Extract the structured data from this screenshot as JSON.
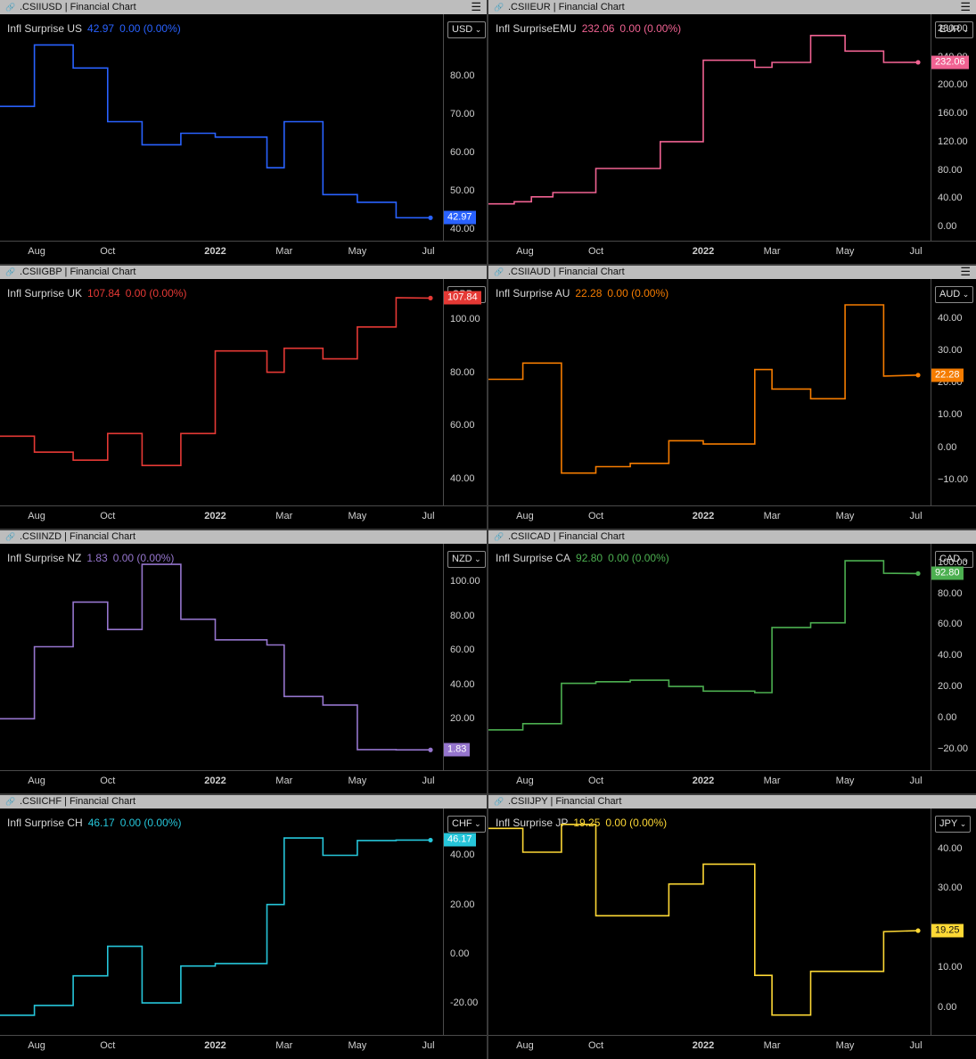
{
  "panels": [
    {
      "header": ".CSIIUSD | Financial Chart",
      "series_name": "Infl Surprise US",
      "value": "42.97",
      "change": "0.00 (0.00%)",
      "currency": "USD",
      "color": "#2962ff",
      "menu": true,
      "price_label": "42.97",
      "x_ticks": [
        "Aug",
        "Oct",
        "2022",
        "Mar",
        "May",
        "Jul"
      ],
      "y_ticks": [
        "80.00",
        "70.00",
        "60.00",
        "50.00",
        "40.00"
      ]
    },
    {
      "header": ".CSIIEUR | Financial Chart",
      "series_name": "Infl SurpriseEMU",
      "value": "232.06",
      "change": "0.00 (0.00%)",
      "currency": "EUR",
      "color": "#f06292",
      "menu": true,
      "price_label": "232.06",
      "x_ticks": [
        "Aug",
        "Oct",
        "2022",
        "Mar",
        "May",
        "Jul"
      ],
      "y_ticks": [
        "280.00",
        "240.00",
        "200.00",
        "160.00",
        "120.00",
        "80.00",
        "40.00",
        "0.00"
      ]
    },
    {
      "header": ".CSIIGBP | Financial Chart",
      "series_name": "Infl Surprise UK",
      "value": "107.84",
      "change": "0.00 (0.00%)",
      "currency": "GBP",
      "color": "#e53935",
      "menu": false,
      "price_label": "107.84",
      "x_ticks": [
        "Aug",
        "Oct",
        "2022",
        "Mar",
        "May",
        "Jul"
      ],
      "y_ticks": [
        "100.00",
        "80.00",
        "60.00",
        "40.00"
      ]
    },
    {
      "header": ".CSIIAUD | Financial Chart",
      "series_name": "Infl Surprise AU",
      "value": "22.28",
      "change": "0.00 (0.00%)",
      "currency": "AUD",
      "color": "#f57c00",
      "menu": true,
      "price_label": "22.28",
      "x_ticks": [
        "Aug",
        "Oct",
        "2022",
        "Mar",
        "May",
        "Jul"
      ],
      "y_ticks": [
        "40.00",
        "30.00",
        "20.00",
        "10.00",
        "0.00",
        "−10.00"
      ]
    },
    {
      "header": ".CSIINZD | Financial Chart",
      "series_name": "Infl Surprise NZ",
      "value": "1.83",
      "change": "0.00 (0.00%)",
      "currency": "NZD",
      "color": "#9575cd",
      "menu": false,
      "price_label": "1.83",
      "x_ticks": [
        "Aug",
        "Oct",
        "2022",
        "Mar",
        "May",
        "Jul"
      ],
      "y_ticks": [
        "100.00",
        "80.00",
        "60.00",
        "40.00",
        "20.00"
      ]
    },
    {
      "header": ".CSIICAD | Financial Chart",
      "series_name": "Infl Surprise CA",
      "value": "92.80",
      "change": "0.00 (0.00%)",
      "currency": "CAD",
      "color": "#4caf50",
      "menu": false,
      "price_label": "92.80",
      "x_ticks": [
        "Aug",
        "Oct",
        "2022",
        "Mar",
        "May",
        "Jul"
      ],
      "y_ticks": [
        "100.00",
        "80.00",
        "60.00",
        "40.00",
        "20.00",
        "0.00",
        "−20.00"
      ]
    },
    {
      "header": ".CSIICHF | Financial Chart",
      "series_name": "Infl Surprise CH",
      "value": "46.17",
      "change": "0.00 (0.00%)",
      "currency": "CHF",
      "color": "#26c6da",
      "menu": false,
      "price_label": "46.17",
      "x_ticks": [
        "Aug",
        "Oct",
        "2022",
        "Mar",
        "May",
        "Jul"
      ],
      "y_ticks": [
        "40.00",
        "20.00",
        "0.00",
        "-20.00"
      ]
    },
    {
      "header": ".CSIIJPY | Financial Chart",
      "series_name": "Infl Surprise JP",
      "value": "19.25",
      "change": "0.00 (0.00%)",
      "currency": "JPY",
      "color": "#fdd835",
      "menu": false,
      "price_label": "19.25",
      "x_ticks": [
        "Aug",
        "Oct",
        "2022",
        "Mar",
        "May",
        "Jul"
      ],
      "y_ticks": [
        "40.00",
        "30.00",
        "20.00",
        "10.00",
        "0.00"
      ]
    }
  ],
  "chart_data": [
    {
      "type": "line",
      "title": "Infl Surprise US",
      "ylim": [
        37,
        96
      ],
      "steps": [
        [
          0,
          72
        ],
        [
          0.08,
          72
        ],
        [
          0.08,
          88
        ],
        [
          0.17,
          88
        ],
        [
          0.17,
          82
        ],
        [
          0.25,
          82
        ],
        [
          0.25,
          68
        ],
        [
          0.33,
          68
        ],
        [
          0.33,
          62
        ],
        [
          0.42,
          62
        ],
        [
          0.42,
          65
        ],
        [
          0.5,
          65
        ],
        [
          0.5,
          64
        ],
        [
          0.62,
          64
        ],
        [
          0.62,
          56
        ],
        [
          0.66,
          56
        ],
        [
          0.66,
          68
        ],
        [
          0.75,
          68
        ],
        [
          0.75,
          49
        ],
        [
          0.83,
          49
        ],
        [
          0.83,
          47
        ],
        [
          0.92,
          47
        ],
        [
          0.92,
          43
        ],
        [
          1,
          42.97
        ]
      ]
    },
    {
      "type": "line",
      "title": "Infl SurpriseEMU",
      "ylim": [
        -20,
        300
      ],
      "steps": [
        [
          0,
          32
        ],
        [
          0.06,
          32
        ],
        [
          0.06,
          35
        ],
        [
          0.1,
          35
        ],
        [
          0.1,
          42
        ],
        [
          0.15,
          42
        ],
        [
          0.15,
          48
        ],
        [
          0.25,
          48
        ],
        [
          0.25,
          82
        ],
        [
          0.4,
          82
        ],
        [
          0.4,
          120
        ],
        [
          0.5,
          120
        ],
        [
          0.5,
          235
        ],
        [
          0.62,
          235
        ],
        [
          0.62,
          225
        ],
        [
          0.66,
          225
        ],
        [
          0.66,
          232
        ],
        [
          0.75,
          232
        ],
        [
          0.75,
          270
        ],
        [
          0.83,
          270
        ],
        [
          0.83,
          248
        ],
        [
          0.92,
          248
        ],
        [
          0.92,
          232
        ],
        [
          1,
          232.06
        ]
      ]
    },
    {
      "type": "line",
      "title": "Infl Surprise UK",
      "ylim": [
        30,
        115
      ],
      "steps": [
        [
          0,
          56
        ],
        [
          0.08,
          56
        ],
        [
          0.08,
          50
        ],
        [
          0.17,
          50
        ],
        [
          0.17,
          47
        ],
        [
          0.25,
          47
        ],
        [
          0.25,
          57
        ],
        [
          0.33,
          57
        ],
        [
          0.33,
          45
        ],
        [
          0.42,
          45
        ],
        [
          0.42,
          57
        ],
        [
          0.5,
          57
        ],
        [
          0.5,
          88
        ],
        [
          0.62,
          88
        ],
        [
          0.62,
          80
        ],
        [
          0.66,
          80
        ],
        [
          0.66,
          89
        ],
        [
          0.75,
          89
        ],
        [
          0.75,
          85
        ],
        [
          0.83,
          85
        ],
        [
          0.83,
          97
        ],
        [
          0.92,
          97
        ],
        [
          0.92,
          108
        ],
        [
          1,
          107.84
        ]
      ]
    },
    {
      "type": "line",
      "title": "Infl Surprise AU",
      "ylim": [
        -18,
        52
      ],
      "steps": [
        [
          0,
          21
        ],
        [
          0.08,
          21
        ],
        [
          0.08,
          26
        ],
        [
          0.17,
          26
        ],
        [
          0.17,
          -8
        ],
        [
          0.25,
          -8
        ],
        [
          0.25,
          -6
        ],
        [
          0.33,
          -6
        ],
        [
          0.33,
          -5
        ],
        [
          0.42,
          -5
        ],
        [
          0.42,
          2
        ],
        [
          0.5,
          2
        ],
        [
          0.5,
          1
        ],
        [
          0.62,
          1
        ],
        [
          0.62,
          24
        ],
        [
          0.66,
          24
        ],
        [
          0.66,
          18
        ],
        [
          0.75,
          18
        ],
        [
          0.75,
          15
        ],
        [
          0.83,
          15
        ],
        [
          0.83,
          44
        ],
        [
          0.92,
          44
        ],
        [
          0.92,
          22
        ],
        [
          1,
          22.28
        ]
      ]
    },
    {
      "type": "line",
      "title": "Infl Surprise NZ",
      "ylim": [
        -10,
        122
      ],
      "steps": [
        [
          0,
          20
        ],
        [
          0.08,
          20
        ],
        [
          0.08,
          62
        ],
        [
          0.17,
          62
        ],
        [
          0.17,
          88
        ],
        [
          0.25,
          88
        ],
        [
          0.25,
          72
        ],
        [
          0.33,
          72
        ],
        [
          0.33,
          110
        ],
        [
          0.42,
          110
        ],
        [
          0.42,
          78
        ],
        [
          0.5,
          78
        ],
        [
          0.5,
          66
        ],
        [
          0.62,
          66
        ],
        [
          0.62,
          63
        ],
        [
          0.66,
          63
        ],
        [
          0.66,
          33
        ],
        [
          0.75,
          33
        ],
        [
          0.75,
          28
        ],
        [
          0.83,
          28
        ],
        [
          0.83,
          2
        ],
        [
          0.92,
          2
        ],
        [
          0.92,
          1.83
        ],
        [
          1,
          1.83
        ]
      ]
    },
    {
      "type": "line",
      "title": "Infl Surprise CA",
      "ylim": [
        -34,
        112
      ],
      "steps": [
        [
          0,
          -8
        ],
        [
          0.08,
          -8
        ],
        [
          0.08,
          -4
        ],
        [
          0.17,
          -4
        ],
        [
          0.17,
          22
        ],
        [
          0.25,
          22
        ],
        [
          0.25,
          23
        ],
        [
          0.33,
          23
        ],
        [
          0.33,
          24
        ],
        [
          0.42,
          24
        ],
        [
          0.42,
          20
        ],
        [
          0.5,
          20
        ],
        [
          0.5,
          17
        ],
        [
          0.62,
          17
        ],
        [
          0.62,
          16
        ],
        [
          0.66,
          16
        ],
        [
          0.66,
          58
        ],
        [
          0.75,
          58
        ],
        [
          0.75,
          61
        ],
        [
          0.83,
          61
        ],
        [
          0.83,
          101
        ],
        [
          0.92,
          101
        ],
        [
          0.92,
          93
        ],
        [
          1,
          92.8
        ]
      ]
    },
    {
      "type": "line",
      "title": "Infl Surprise CH",
      "ylim": [
        -33,
        59
      ],
      "steps": [
        [
          0,
          -25
        ],
        [
          0.08,
          -25
        ],
        [
          0.08,
          -21
        ],
        [
          0.17,
          -21
        ],
        [
          0.17,
          -9
        ],
        [
          0.25,
          -9
        ],
        [
          0.25,
          3
        ],
        [
          0.33,
          3
        ],
        [
          0.33,
          -20
        ],
        [
          0.42,
          -20
        ],
        [
          0.42,
          -5
        ],
        [
          0.5,
          -5
        ],
        [
          0.5,
          -4
        ],
        [
          0.62,
          -4
        ],
        [
          0.62,
          20
        ],
        [
          0.66,
          20
        ],
        [
          0.66,
          47
        ],
        [
          0.75,
          47
        ],
        [
          0.75,
          40
        ],
        [
          0.83,
          40
        ],
        [
          0.83,
          46
        ],
        [
          0.92,
          46
        ],
        [
          0.92,
          46.17
        ],
        [
          1,
          46.17
        ]
      ]
    },
    {
      "type": "line",
      "title": "Infl Surprise JP",
      "ylim": [
        -7,
        50
      ],
      "steps": [
        [
          0,
          45
        ],
        [
          0.08,
          45
        ],
        [
          0.08,
          39
        ],
        [
          0.17,
          39
        ],
        [
          0.17,
          46
        ],
        [
          0.25,
          46
        ],
        [
          0.25,
          23
        ],
        [
          0.33,
          23
        ],
        [
          0.33,
          23
        ],
        [
          0.42,
          23
        ],
        [
          0.42,
          31
        ],
        [
          0.5,
          31
        ],
        [
          0.5,
          36
        ],
        [
          0.62,
          36
        ],
        [
          0.62,
          8
        ],
        [
          0.66,
          8
        ],
        [
          0.66,
          -2
        ],
        [
          0.75,
          -2
        ],
        [
          0.75,
          9
        ],
        [
          0.83,
          9
        ],
        [
          0.83,
          9
        ],
        [
          0.92,
          9
        ],
        [
          0.92,
          19
        ],
        [
          1,
          19.25
        ]
      ]
    }
  ]
}
